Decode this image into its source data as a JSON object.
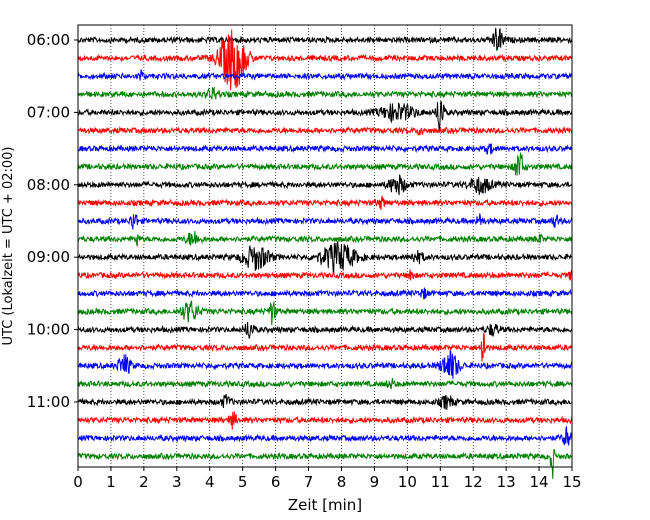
{
  "chart_data": {
    "type": "line",
    "title": "",
    "xlabel": "Zeit  [min]",
    "ylabel": "UTC (Lokalzeit = UTC + 02:00)",
    "xlim": [
      0,
      15
    ],
    "x_ticks": [
      0,
      1,
      2,
      3,
      4,
      5,
      6,
      7,
      8,
      9,
      10,
      11,
      12,
      13,
      14,
      15
    ],
    "x_tick_labels": [
      "0",
      "1",
      "2",
      "3",
      "4",
      "5",
      "6",
      "7",
      "8",
      "9",
      "10",
      "11",
      "12",
      "13",
      "14",
      "15"
    ],
    "y_tick_labels": [
      "06:00",
      "07:00",
      "08:00",
      "09:00",
      "10:00",
      "11:00"
    ],
    "row_interval_minutes": 15,
    "grid": {
      "vertical": true,
      "style": "dotted"
    },
    "series_colors": [
      "#000000",
      "#ff0000",
      "#0000ff",
      "#008000"
    ],
    "rows": [
      {
        "time": "06:00",
        "color": "#000000",
        "events": [
          {
            "t": 12.75,
            "amp": 1.2,
            "dur": 0.25
          }
        ]
      },
      {
        "time": "06:15",
        "color": "#ff0000",
        "events": [
          {
            "t": 4.7,
            "amp": 3.2,
            "dur": 0.6
          }
        ]
      },
      {
        "time": "06:30",
        "color": "#0000ff",
        "events": [
          {
            "t": 1.9,
            "amp": 0.6,
            "dur": 0.1
          }
        ]
      },
      {
        "time": "06:45",
        "color": "#008000",
        "events": [
          {
            "t": 4.1,
            "amp": 0.5,
            "dur": 0.3
          }
        ]
      },
      {
        "time": "07:00",
        "color": "#000000",
        "events": [
          {
            "t": 9.7,
            "amp": 0.8,
            "dur": 0.8
          },
          {
            "t": 11.0,
            "amp": 2.5,
            "dur": 0.15
          }
        ]
      },
      {
        "time": "07:15",
        "color": "#ff0000",
        "events": [
          {
            "t": 10.4,
            "amp": 0.7,
            "dur": 0.1
          }
        ]
      },
      {
        "time": "07:30",
        "color": "#0000ff",
        "events": [
          {
            "t": 12.5,
            "amp": 0.4,
            "dur": 0.2
          }
        ]
      },
      {
        "time": "07:45",
        "color": "#008000",
        "events": [
          {
            "t": 13.4,
            "amp": 1.6,
            "dur": 0.2
          }
        ]
      },
      {
        "time": "08:00",
        "color": "#000000",
        "events": [
          {
            "t": 9.7,
            "amp": 0.9,
            "dur": 0.4
          },
          {
            "t": 12.2,
            "amp": 0.8,
            "dur": 0.5
          }
        ]
      },
      {
        "time": "08:15",
        "color": "#ff0000",
        "events": [
          {
            "t": 9.2,
            "amp": 0.5,
            "dur": 0.2
          }
        ]
      },
      {
        "time": "08:30",
        "color": "#0000ff",
        "events": [
          {
            "t": 1.7,
            "amp": 1.0,
            "dur": 0.15
          },
          {
            "t": 12.2,
            "amp": 0.6,
            "dur": 0.15
          },
          {
            "t": 14.5,
            "amp": 0.5,
            "dur": 0.2
          }
        ]
      },
      {
        "time": "08:45",
        "color": "#008000",
        "events": [
          {
            "t": 1.8,
            "amp": 0.6,
            "dur": 0.1
          },
          {
            "t": 3.5,
            "amp": 0.7,
            "dur": 0.3
          },
          {
            "t": 14.0,
            "amp": 0.4,
            "dur": 0.15
          }
        ]
      },
      {
        "time": "09:00",
        "color": "#000000",
        "events": [
          {
            "t": 5.4,
            "amp": 1.2,
            "dur": 0.6
          },
          {
            "t": 7.9,
            "amp": 1.4,
            "dur": 0.8
          },
          {
            "t": 10.3,
            "amp": 0.5,
            "dur": 0.3
          }
        ]
      },
      {
        "time": "09:15",
        "color": "#ff0000",
        "events": [
          {
            "t": 10.1,
            "amp": 0.9,
            "dur": 0.1
          },
          {
            "t": 15.0,
            "amp": 0.9,
            "dur": 0.1
          }
        ]
      },
      {
        "time": "09:30",
        "color": "#0000ff",
        "events": [
          {
            "t": 10.5,
            "amp": 0.4,
            "dur": 0.2
          }
        ]
      },
      {
        "time": "09:45",
        "color": "#008000",
        "events": [
          {
            "t": 3.4,
            "amp": 1.0,
            "dur": 0.4
          },
          {
            "t": 5.9,
            "amp": 1.2,
            "dur": 0.15
          }
        ]
      },
      {
        "time": "10:00",
        "color": "#000000",
        "events": [
          {
            "t": 5.2,
            "amp": 0.9,
            "dur": 0.2
          },
          {
            "t": 12.6,
            "amp": 0.5,
            "dur": 0.3
          }
        ]
      },
      {
        "time": "10:15",
        "color": "#ff0000",
        "events": [
          {
            "t": 12.3,
            "amp": 2.4,
            "dur": 0.1
          }
        ]
      },
      {
        "time": "10:30",
        "color": "#0000ff",
        "events": [
          {
            "t": 1.4,
            "amp": 1.0,
            "dur": 0.3
          },
          {
            "t": 11.3,
            "amp": 1.4,
            "dur": 0.4
          }
        ]
      },
      {
        "time": "10:45",
        "color": "#008000",
        "events": [
          {
            "t": 9.5,
            "amp": 0.4,
            "dur": 0.2
          }
        ]
      },
      {
        "time": "11:00",
        "color": "#000000",
        "events": [
          {
            "t": 4.5,
            "amp": 0.6,
            "dur": 0.2
          },
          {
            "t": 11.2,
            "amp": 0.6,
            "dur": 0.3
          }
        ]
      },
      {
        "time": "11:15",
        "color": "#ff0000",
        "events": [
          {
            "t": 4.7,
            "amp": 0.7,
            "dur": 0.2
          }
        ]
      },
      {
        "time": "11:30",
        "color": "#0000ff",
        "events": [
          {
            "t": 14.85,
            "amp": 1.0,
            "dur": 0.2
          }
        ]
      },
      {
        "time": "11:45",
        "color": "#008000",
        "events": [
          {
            "t": 14.4,
            "amp": 2.3,
            "dur": 0.08
          }
        ]
      }
    ]
  }
}
